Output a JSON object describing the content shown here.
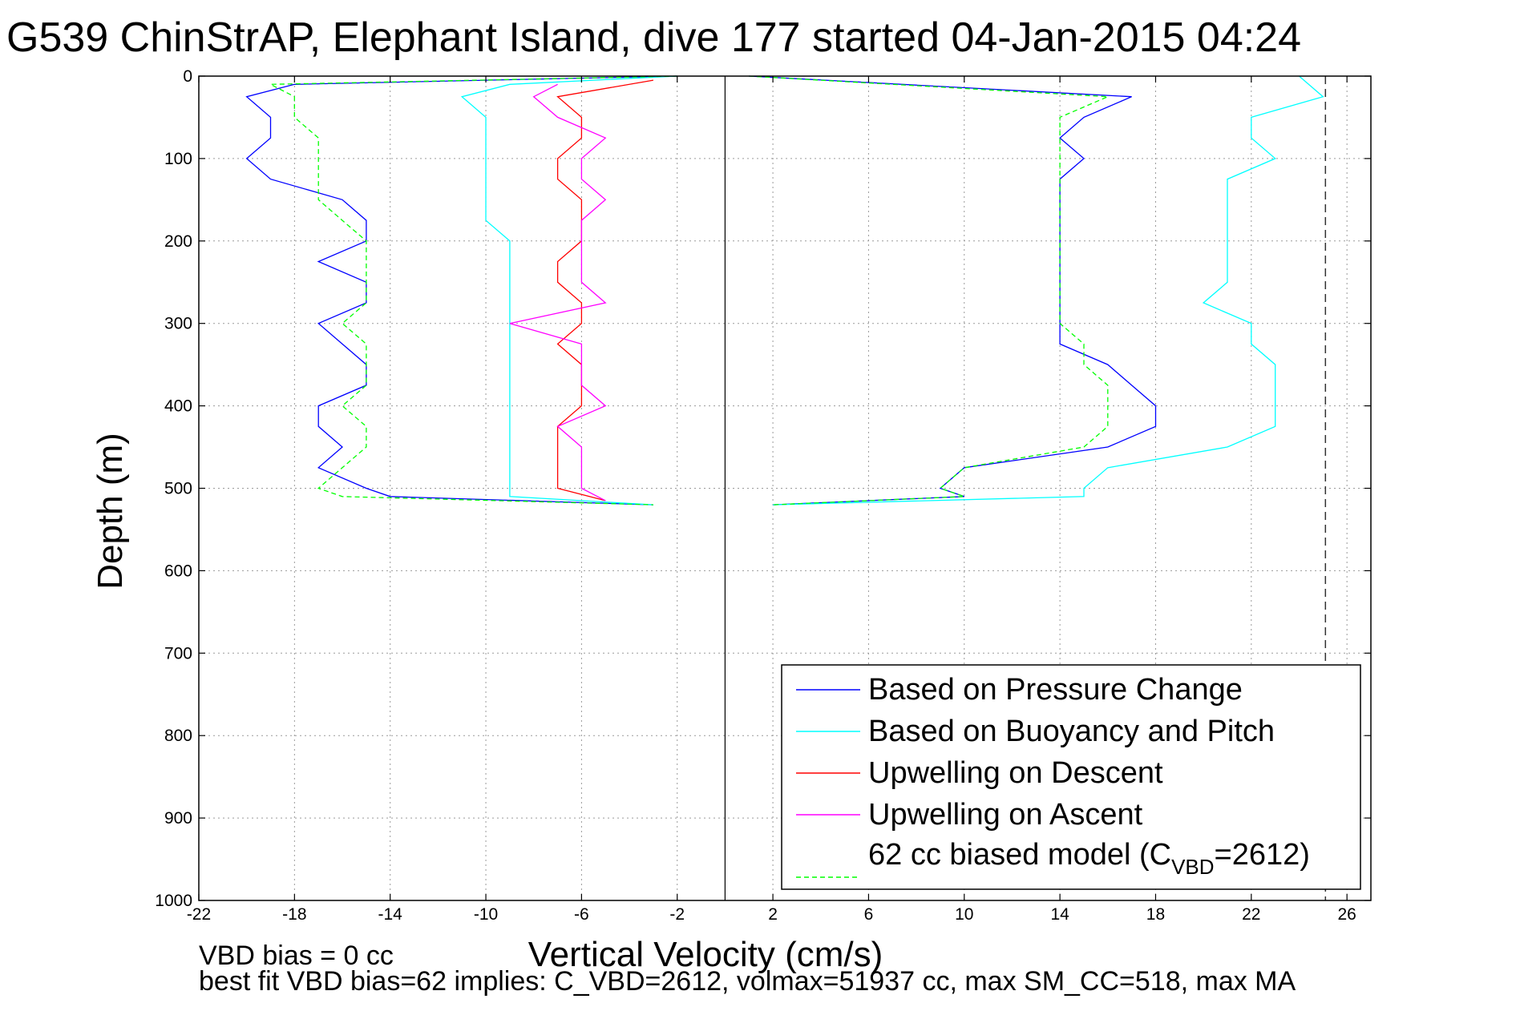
{
  "title": "G539 ChinStrAP, Elephant Island, dive 177 started 04-Jan-2015 04:24",
  "notes": {
    "line1": "VBD bias = 0 cc",
    "line2": "best fit VBD bias=62 implies: C_VBD=2612, volmax=51937 cc, max SM_CC=518, max MA"
  },
  "chart_data": {
    "type": "line",
    "title": "G539 ChinStrAP, Elephant Island, dive 177 started 04-Jan-2015 04:24",
    "xlabel": "Vertical Velocity (cm/s)",
    "ylabel": "Depth (m)",
    "xlim": [
      -22,
      27
    ],
    "ylim": [
      0,
      1000
    ],
    "y_reversed": true,
    "xticks": [
      "-22",
      "-18",
      "-14",
      "-10",
      "-6",
      "-2",
      "2",
      "6",
      "10",
      "14",
      "18",
      "22",
      "26"
    ],
    "yticks": [
      "0",
      "100",
      "200",
      "300",
      "400",
      "500",
      "600",
      "700",
      "800",
      "900",
      "1000"
    ],
    "grid": true,
    "legend_position": "bottom-right",
    "reference_lines": {
      "zero_velocity_x": 0,
      "dashed_x": 25.1
    },
    "legend": [
      {
        "label": "Based on Pressure Change",
        "color": "#0000ff",
        "dash": "solid"
      },
      {
        "label": "Based on Buoyancy and Pitch",
        "color": "#00ffff",
        "dash": "solid"
      },
      {
        "label": "Upwelling on Descent",
        "color": "#ff0000",
        "dash": "solid"
      },
      {
        "label": "Upwelling on Ascent",
        "color": "#ff00ff",
        "dash": "solid"
      },
      {
        "label": "62 cc biased model (C",
        "sub": "VBD",
        "label_end": "=2612)",
        "color": "#00ff00",
        "dash": "dashed"
      }
    ],
    "series": [
      {
        "name": "Based on Pressure Change",
        "color": "#0000ff",
        "dash": "solid",
        "segments": [
          {
            "depth": [
              0,
              10,
              25,
              50,
              75,
              100,
              125,
              150,
              175,
              200,
              225,
              250,
              275,
              300,
              325,
              350,
              375,
              400,
              425,
              450,
              475,
              500,
              510,
              520
            ],
            "velocity": [
              -2,
              -18,
              -20,
              -19,
              -19,
              -20,
              -19,
              -16,
              -15,
              -15,
              -17,
              -15,
              -15,
              -17,
              -16,
              -15,
              -15,
              -17,
              -17,
              -16,
              -17,
              -15,
              -14,
              -3
            ]
          },
          {
            "depth": [
              0,
              25,
              50,
              75,
              100,
              125,
              150,
              175,
              200,
              225,
              250,
              275,
              300,
              325,
              350,
              375,
              400,
              425,
              450,
              475,
              500,
              510,
              520
            ],
            "velocity": [
              1,
              17,
              15,
              14,
              15,
              14,
              14,
              14,
              14,
              14,
              14,
              14,
              14,
              14,
              16,
              17,
              18,
              18,
              16,
              10,
              9,
              10,
              2
            ]
          }
        ]
      },
      {
        "name": "Based on Buoyancy and Pitch",
        "color": "#00ffff",
        "dash": "solid",
        "segments": [
          {
            "depth": [
              0,
              10,
              25,
              50,
              75,
              100,
              125,
              150,
              175,
              200,
              225,
              250,
              275,
              300,
              325,
              350,
              375,
              400,
              425,
              450,
              475,
              500,
              510,
              520
            ],
            "velocity": [
              -2,
              -9,
              -11,
              -10,
              -10,
              -10,
              -10,
              -10,
              -10,
              -9,
              -9,
              -9,
              -9,
              -9,
              -9,
              -9,
              -9,
              -9,
              -9,
              -9,
              -9,
              -9,
              -9,
              -3
            ]
          },
          {
            "depth": [
              0,
              25,
              50,
              75,
              100,
              125,
              150,
              175,
              200,
              225,
              250,
              275,
              300,
              325,
              350,
              375,
              400,
              425,
              450,
              475,
              500,
              510,
              520
            ],
            "velocity": [
              24,
              25,
              22,
              22,
              23,
              21,
              21,
              21,
              21,
              21,
              21,
              20,
              22,
              22,
              23,
              23,
              23,
              23,
              21,
              16,
              15,
              15,
              2
            ]
          }
        ]
      },
      {
        "name": "Upwelling on Descent",
        "color": "#ff0000",
        "dash": "solid",
        "segments": [
          {
            "depth": [
              5,
              25,
              50,
              75,
              100,
              125,
              150,
              175,
              200,
              225,
              250,
              275,
              300,
              325,
              350,
              375,
              400,
              425,
              450,
              475,
              500,
              515
            ],
            "velocity": [
              -3,
              -7,
              -6,
              -6,
              -7,
              -7,
              -6,
              -6,
              -6,
              -7,
              -7,
              -6,
              -6,
              -7,
              -6,
              -6,
              -6,
              -7,
              -7,
              -7,
              -7,
              -5
            ]
          }
        ]
      },
      {
        "name": "Upwelling on Ascent",
        "color": "#ff00ff",
        "dash": "solid",
        "segments": [
          {
            "depth": [
              10,
              25,
              50,
              75,
              100,
              125,
              150,
              175,
              200,
              225,
              250,
              275,
              300,
              325,
              350,
              375,
              400,
              425,
              450,
              475,
              500,
              515
            ],
            "velocity": [
              -7,
              -8,
              -7,
              -5,
              -6,
              -6,
              -5,
              -6,
              -6,
              -6,
              -6,
              -5,
              -9,
              -6,
              -6,
              -6,
              -5,
              -7,
              -6,
              -6,
              -6,
              -5
            ]
          }
        ]
      },
      {
        "name": "62 cc biased model (C_VBD=2612)",
        "color": "#00ff00",
        "dash": "dashed",
        "segments": [
          {
            "depth": [
              0,
              10,
              25,
              50,
              75,
              100,
              125,
              150,
              175,
              200,
              225,
              250,
              275,
              300,
              325,
              350,
              375,
              400,
              425,
              450,
              475,
              500,
              510,
              520
            ],
            "velocity": [
              -2,
              -19,
              -18,
              -18,
              -17,
              -17,
              -17,
              -17,
              -16,
              -15,
              -15,
              -15,
              -15,
              -16,
              -15,
              -15,
              -15,
              -16,
              -15,
              -15,
              -16,
              -17,
              -16,
              -3
            ]
          },
          {
            "depth": [
              0,
              25,
              50,
              75,
              100,
              125,
              150,
              175,
              200,
              225,
              250,
              275,
              300,
              325,
              350,
              375,
              400,
              425,
              450,
              475,
              500,
              510,
              520
            ],
            "velocity": [
              1,
              16,
              14,
              14,
              14,
              14,
              14,
              14,
              14,
              14,
              14,
              14,
              14,
              15,
              15,
              16,
              16,
              16,
              15,
              10,
              9,
              10,
              2
            ]
          }
        ]
      }
    ]
  }
}
